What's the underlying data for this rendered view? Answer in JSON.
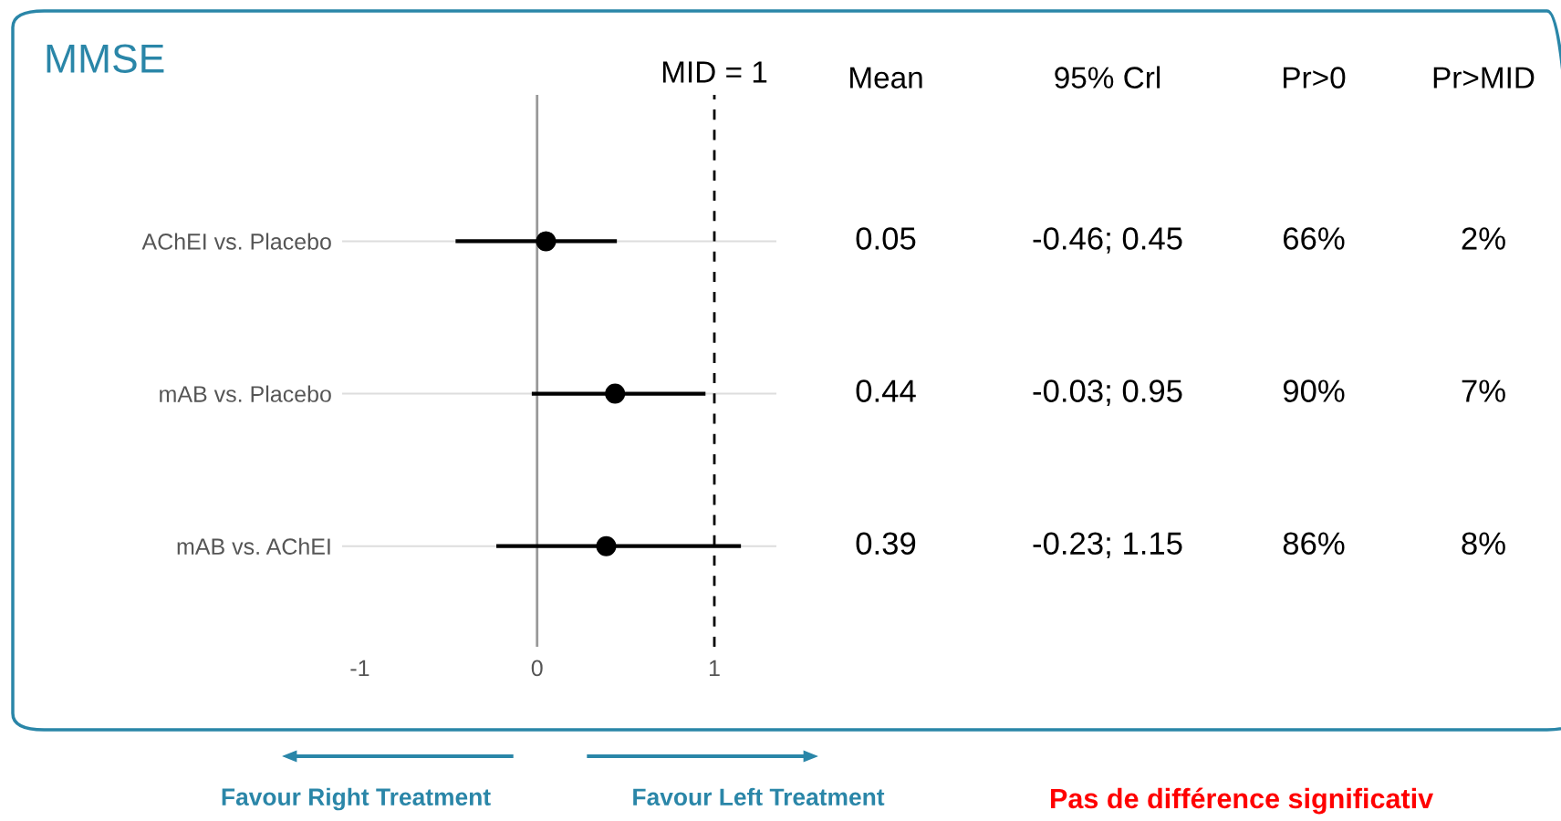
{
  "chart_data": {
    "type": "scatter",
    "orientation": "horizontal",
    "title": "MMSE",
    "categories": [
      "AChEI vs. Placebo",
      "mAB vs. Placebo",
      "mAB vs. AChEI"
    ],
    "values": [
      0.05,
      0.44,
      0.39
    ],
    "errors": [
      [
        -0.46,
        0.45
      ],
      [
        -0.03,
        0.95
      ],
      [
        -0.23,
        1.15
      ]
    ],
    "color": "#000000",
    "marker": "circle",
    "xlim": [
      -1.1,
      1.35
    ],
    "xticks": [
      -1,
      0,
      1
    ],
    "grid": "y",
    "ref_lines": [
      {
        "axis": "x",
        "value": 0,
        "color": "#999999",
        "line_style": "solid"
      },
      {
        "axis": "x",
        "value": 1,
        "label": "MID = 1",
        "color": "#000000",
        "line_style": "dashed"
      }
    ],
    "annotations": [
      "Mean",
      "95% Crl",
      "Pr>0",
      "Pr>MID",
      "0.05",
      "-0.46; 0.45",
      "66%",
      "2%",
      "0.44",
      "-0.03; 0.95",
      "90%",
      "7%",
      "0.39",
      "-0.23; 1.15",
      "86%",
      "8%",
      "Favour Right Treatment",
      "Favour Left Treatment",
      "Pas de différence significativ"
    ]
  }
}
